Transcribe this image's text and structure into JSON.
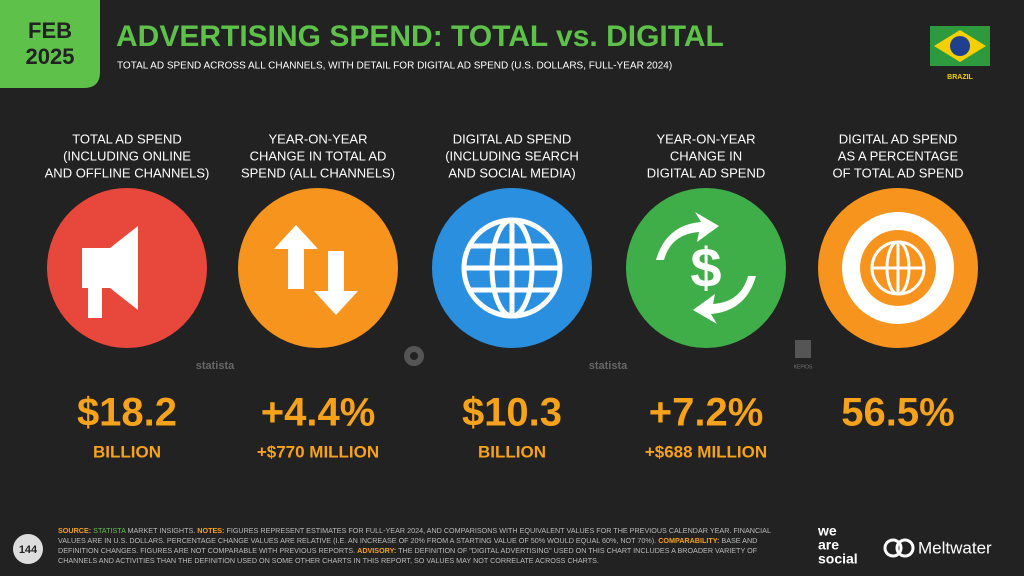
{
  "header": {
    "month": "FEB",
    "year": "2025",
    "title": "ADVERTISING SPEND: TOTAL vs. DIGITAL",
    "subtitle": "TOTAL AD SPEND ACROSS ALL CHANNELS, WITH DETAIL FOR DIGITAL AD SPEND (U.S. DOLLARS, FULL-YEAR 2024)",
    "country": "BRAZIL"
  },
  "cards": [
    {
      "label": [
        "TOTAL AD SPEND",
        "(INCLUDING ONLINE",
        "AND OFFLINE CHANNELS)"
      ],
      "value": "$18.2",
      "unit": "BILLION"
    },
    {
      "label": [
        "YEAR-ON-YEAR",
        "CHANGE IN TOTAL AD",
        "SPEND (ALL CHANNELS)"
      ],
      "value": "+4.4%",
      "unit": "+$770 MILLION"
    },
    {
      "label": [
        "DIGITAL AD SPEND",
        "(INCLUDING SEARCH",
        "AND SOCIAL MEDIA)"
      ],
      "value": "$10.3",
      "unit": "BILLION"
    },
    {
      "label": [
        "YEAR-ON-YEAR",
        "CHANGE IN",
        "DIGITAL AD SPEND"
      ],
      "value": "+7.2%",
      "unit": "+$688 MILLION"
    },
    {
      "label": [
        "DIGITAL AD SPEND",
        "AS A PERCENTAGE",
        "OF TOTAL AD SPEND"
      ],
      "value": "56.5%",
      "unit": null
    }
  ],
  "sources": [
    "statista",
    "statista",
    "KEPIOS"
  ],
  "footer": {
    "page": "144",
    "parts": [
      "SOURCE:",
      "STATISTA",
      "MARKET INSIGHTS.",
      "NOTES:",
      "FIGURES REPRESENT ESTIMATES FOR FULL-YEAR 2024, AND COMPARISONS WITH EQUIVALENT VALUES FOR THE PREVIOUS CALENDAR YEAR. FINANCIAL VALUES ARE IN U.S. DOLLARS. PERCENTAGE CHANGE VALUES ARE RELATIVE (I.E. AN INCREASE OF 20% FROM A STARTING VALUE OF 50% WOULD EQUAL 60%, NOT 70%).",
      "COMPARABILITY:",
      "BASE AND DEFINITION CHANGES. FIGURES ARE NOT COMPARABLE WITH PREVIOUS REPORTS.",
      "ADVISORY:",
      "THE DEFINITION OF \"DIGITAL ADVERTISING\" USED ON THIS CHART INCLUDES A BROADER VARIETY OF CHANNELS AND ACTIVITIES THAN THE DEFINITION USED ON SOME OTHER CHARTS IN THIS REPORT, SO VALUES MAY NOT CORRELATE ACROSS CHARTS."
    ],
    "brand1": [
      "we",
      "are",
      "social"
    ],
    "brand2": "Meltwater"
  }
}
